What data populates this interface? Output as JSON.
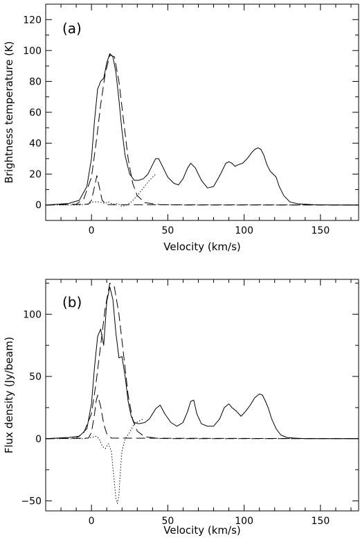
{
  "chart_data": [
    {
      "type": "line",
      "panel_label": "(a)",
      "xlabel": "Velocity (km/s)",
      "ylabel": "Brightness temperature (K)",
      "xlim": [
        -30,
        175
      ],
      "ylim": [
        -10,
        130
      ],
      "x_ticks": [
        0,
        50,
        100,
        150
      ],
      "y_ticks": [
        0,
        20,
        40,
        60,
        80,
        100,
        120
      ],
      "x_tick_labels": [
        "0",
        "50",
        "100",
        "150"
      ],
      "y_tick_labels": [
        "0",
        "20",
        "40",
        "60",
        "80",
        "100",
        "120"
      ],
      "grid": false,
      "series": [
        {
          "style": "solid",
          "x": [
            -30,
            -15,
            -8,
            -3,
            0,
            2,
            4,
            6,
            8,
            10,
            12,
            14,
            16,
            18,
            20,
            22,
            25,
            28,
            31,
            34,
            37,
            40,
            42,
            44,
            47,
            50,
            54,
            57,
            60,
            63,
            65,
            68,
            72,
            76,
            80,
            84,
            88,
            90,
            92,
            94,
            96,
            99,
            102,
            105,
            107,
            109,
            111,
            113,
            115,
            117,
            119,
            121,
            123,
            126,
            130,
            135,
            145,
            160,
            175
          ],
          "y": [
            0,
            1,
            3,
            12,
            30,
            55,
            75,
            80,
            82,
            92,
            98,
            96,
            86,
            68,
            48,
            32,
            20,
            16,
            16,
            17,
            20,
            26,
            30,
            30,
            24,
            18,
            14,
            13,
            17,
            24,
            27,
            24,
            16,
            11,
            12,
            19,
            27,
            28,
            27,
            25,
            26,
            27,
            30,
            34,
            36,
            37,
            36,
            32,
            26,
            22,
            20,
            18,
            12,
            6,
            2,
            0.8,
            0.2,
            0,
            0
          ]
        },
        {
          "style": "dashed",
          "x": [
            -30,
            -10,
            -5,
            0,
            3,
            6,
            9,
            12,
            15,
            18,
            21,
            24,
            27,
            30,
            35,
            45,
            60,
            100,
            175
          ],
          "y": [
            0,
            0.5,
            4,
            18,
            40,
            65,
            85,
            97,
            96,
            80,
            55,
            30,
            14,
            6,
            1.5,
            0.2,
            0,
            0,
            0
          ]
        },
        {
          "style": "dashed",
          "x": [
            -30,
            -2,
            0,
            2,
            3.5,
            5,
            7,
            10,
            175
          ],
          "y": [
            0,
            0.5,
            3,
            12,
            19,
            12,
            3,
            0.2,
            0
          ]
        },
        {
          "style": "dotted",
          "x": [
            -30,
            -8,
            -3,
            1,
            3,
            5,
            7,
            9,
            11,
            14,
            17,
            20,
            23,
            26,
            30,
            34,
            38,
            42
          ],
          "y": [
            0,
            0,
            0.5,
            2,
            2,
            2,
            1.5,
            1,
            2,
            0.5,
            1,
            -1,
            0,
            2,
            6,
            11,
            16,
            20
          ]
        }
      ]
    },
    {
      "type": "line",
      "panel_label": "(b)",
      "xlabel": "Velocity (km/s)",
      "ylabel": "Flux density (Jy/beam)",
      "xlim": [
        -30,
        175
      ],
      "ylim": [
        -58,
        128
      ],
      "x_ticks": [
        0,
        50,
        100,
        150
      ],
      "y_ticks": [
        -50,
        0,
        50,
        100
      ],
      "x_tick_labels": [
        "0",
        "50",
        "100",
        "150"
      ],
      "y_tick_labels": [
        "−50",
        "0",
        "50",
        "100"
      ],
      "grid": false,
      "series": [
        {
          "style": "solid",
          "x": [
            -30,
            -15,
            -8,
            -3,
            0,
            2,
            4,
            6,
            8,
            10,
            12,
            14,
            16,
            18,
            20,
            22,
            24,
            26,
            28,
            31,
            35,
            38,
            42,
            45,
            48,
            52,
            56,
            60,
            63,
            65,
            67,
            69,
            72,
            76,
            80,
            84,
            87,
            90,
            92,
            95,
            98,
            101,
            104,
            107,
            110,
            112,
            114,
            116,
            118,
            121,
            124,
            128,
            133,
            140,
            150,
            160,
            175
          ],
          "y": [
            0,
            1,
            2,
            8,
            28,
            58,
            82,
            88,
            75,
            110,
            122,
            112,
            85,
            65,
            66,
            50,
            30,
            18,
            13,
            12,
            13,
            16,
            24,
            27,
            20,
            13,
            10,
            13,
            22,
            30,
            31,
            20,
            12,
            10,
            10,
            16,
            25,
            28,
            25,
            22,
            18,
            22,
            27,
            33,
            36,
            35,
            30,
            24,
            16,
            8,
            3,
            1,
            0.5,
            0,
            0,
            0,
            0
          ]
        },
        {
          "style": "dashed",
          "x": [
            -30,
            -10,
            -5,
            0,
            3,
            6,
            9,
            12,
            15,
            18,
            21,
            24,
            27,
            30,
            35,
            45,
            60,
            100,
            175
          ],
          "y": [
            0,
            0.5,
            5,
            20,
            45,
            75,
            105,
            125,
            122,
            100,
            68,
            35,
            15,
            6,
            1.5,
            0.2,
            0,
            0,
            0
          ]
        },
        {
          "style": "dashed",
          "x": [
            -30,
            -2,
            0,
            2,
            3,
            4,
            6,
            8,
            10,
            13,
            175
          ],
          "y": [
            0,
            0.5,
            5,
            20,
            30,
            35,
            26,
            12,
            4,
            0.5,
            0
          ]
        },
        {
          "style": "dotted",
          "x": [
            -30,
            -5,
            0,
            3,
            5,
            7,
            9,
            11,
            13,
            15,
            16,
            17,
            18,
            19,
            20,
            22,
            25,
            28,
            31,
            34
          ],
          "y": [
            0,
            0,
            1,
            2,
            0,
            -6,
            -8,
            -4,
            -10,
            -35,
            -48,
            -52,
            -45,
            -25,
            -10,
            0,
            5,
            12,
            14,
            16
          ]
        }
      ]
    }
  ]
}
